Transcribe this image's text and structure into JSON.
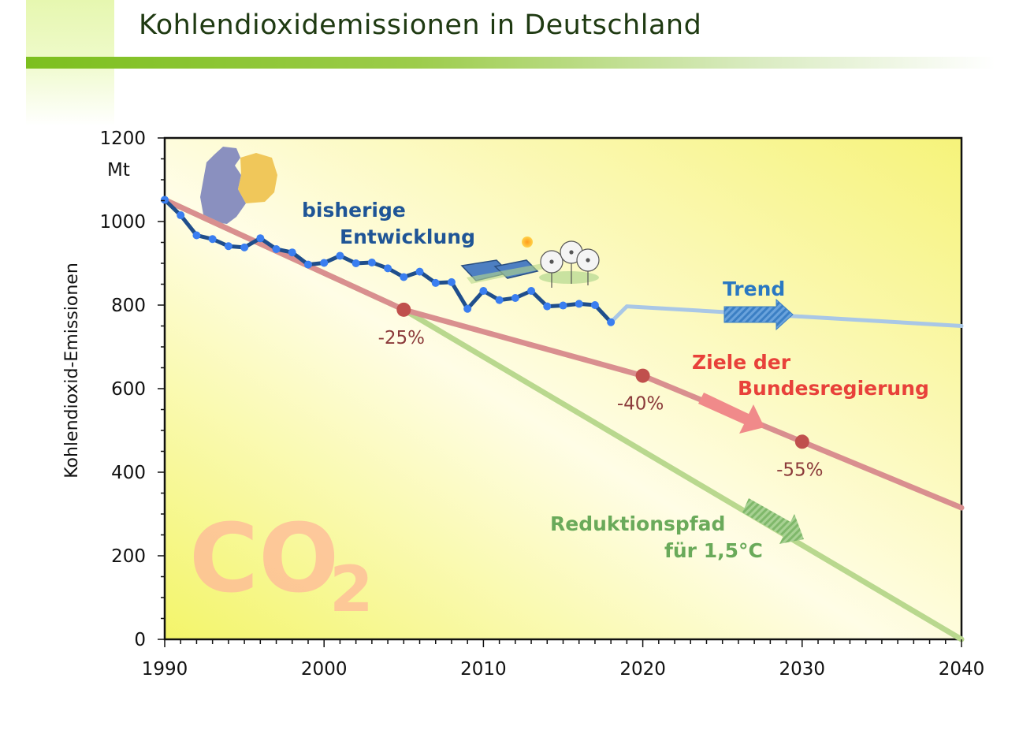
{
  "page": {
    "title": "Kohlendioxidemissionen in Deutschland"
  },
  "chart_data": {
    "type": "line",
    "ylabel": "Kohlendioxid-Emissionen",
    "yunit": "Mt",
    "xlim": [
      1990,
      2040
    ],
    "ylim": [
      0,
      1200
    ],
    "xticks": [
      1990,
      2000,
      2010,
      2020,
      2030,
      2040
    ],
    "yticks": [
      0,
      200,
      400,
      600,
      800,
      1000,
      1200
    ],
    "grid": false,
    "watermark": {
      "main": "CO",
      "sub": "2"
    },
    "series": [
      {
        "name": "bisherige Entwicklung",
        "color": "#1f4e8c",
        "x": [
          1990,
          1991,
          1992,
          1993,
          1994,
          1995,
          1996,
          1997,
          1998,
          1999,
          2000,
          2001,
          2002,
          2003,
          2004,
          2005,
          2006,
          2007,
          2008,
          2009,
          2010,
          2011,
          2012,
          2013,
          2014,
          2015,
          2016,
          2017,
          2018
        ],
        "y": [
          1052,
          1015,
          967,
          958,
          941,
          938,
          960,
          934,
          926,
          897,
          901,
          918,
          900,
          902,
          888,
          867,
          880,
          853,
          855,
          791,
          834,
          812,
          817,
          834,
          797,
          799,
          803,
          800,
          759
        ]
      },
      {
        "name": "Trend",
        "color": "#a9c7e6",
        "x": [
          2018,
          2019,
          2040
        ],
        "y": [
          759,
          797,
          750
        ]
      },
      {
        "name": "Ziele der Bundesregierung",
        "color": "#d98f8f",
        "x": [
          1990,
          2005,
          2020,
          2030,
          2040
        ],
        "y": [
          1052,
          789,
          631,
          473,
          315
        ]
      },
      {
        "name": "Reduktionspfad für 1,5°C",
        "color": "#b9d88e",
        "x": [
          1990,
          2005,
          2040
        ],
        "y": [
          1052,
          789,
          0
        ]
      }
    ],
    "targets": [
      {
        "x": 2005,
        "y": 789,
        "label": "-25%"
      },
      {
        "x": 2020,
        "y": 631,
        "label": "-40%"
      },
      {
        "x": 2030,
        "y": 473,
        "label": "-55%"
      }
    ],
    "annotations": {
      "history": [
        "bisherige",
        "Entwicklung"
      ],
      "trend": "Trend",
      "goals": [
        "Ziele der",
        "Bundesregierung"
      ],
      "pathway": [
        "Reduktionspfad",
        "für 1,5°C"
      ]
    }
  }
}
